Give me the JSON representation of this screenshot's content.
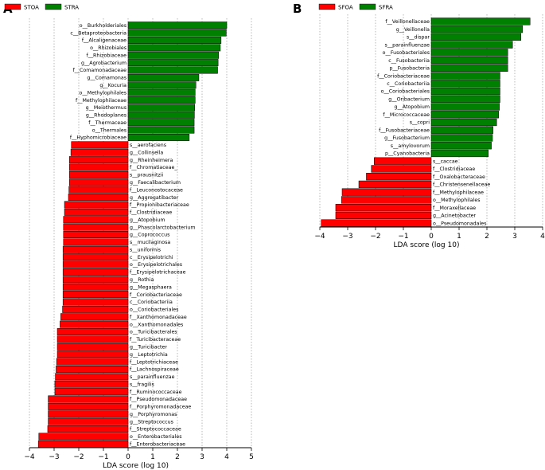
{
  "figure": {
    "panel_a_letter": "A",
    "panel_b_letter": "B"
  },
  "chart_data": [
    {
      "type": "bar",
      "orientation": "horizontal",
      "panel": "A",
      "xlabel": "LDA score (log 10)",
      "xlim": [
        -4,
        5
      ],
      "xticks": [
        -4,
        -3,
        -2,
        -1,
        0,
        1,
        2,
        3,
        4,
        5
      ],
      "grid": true,
      "legend": [
        {
          "name": "STOA",
          "color": "#ff0000"
        },
        {
          "name": "STRA",
          "color": "#008000"
        }
      ],
      "colors": {
        "positive": "#008000",
        "negative": "#ff0000"
      },
      "categories": [
        "o__Burkholderiales",
        "c__Betaproteobacteria",
        "f__Alcaligenaceae",
        "o__Rhizobiales",
        "f__Rhizobiaceae",
        "g__Agrobacterium",
        "f__Comamonadaceae",
        "g__Comamonas",
        "g__Kocuria",
        "o__Methylophilales",
        "f__Methylophilaceae",
        "g__Meiothermus",
        "g__Rhodoplanes",
        "f__Thermaceae",
        "o__Thermales",
        "f__Hyphomicrobiaceae",
        "s__aerofaciens",
        "g__Collinsella",
        "g__Rheinheimera",
        "f__Chromatiaceae_",
        "s__prausnitzii",
        "g__Faecalibacterium",
        "f__Leuconostocaceae",
        "g__Aggregatibacter",
        "f__Propionibacteriaceae",
        "f__Clostridiaceae",
        "g__Atopobium",
        "g__Phascolarctobacterium",
        "g__Coprococcus",
        "s__mucilaginosa",
        "s__uniformis",
        "c__Erysipelotrichi",
        "o__Erysipelotrichales",
        "f__Erysipelotrichaceae",
        "g__Rothia",
        "g__Megasphaera",
        "f__Coriobacteriaceae",
        "c__Coriobacteriia",
        "o__Coriobacteriales",
        "f__Xanthomonadaceae",
        "o__Xanthomonadales",
        "o__Turicibacterales",
        "f__Turicibacteraceae",
        "g__Turicibacter",
        "g__Leptotrichia",
        "f__Leptotrichiaceae",
        "f__Lachnospiraceae",
        "s__parainfluenzae",
        "s__fragilis",
        "f__Ruminococcaceae",
        "f__Pseudomonadaceae",
        "f__Porphyromonadaceae",
        "g__Porphyromonas",
        "g__Streptococcus",
        "f__Streptococcaceae",
        "o__Enterobacteriales",
        "f__Enterobacteriaceae"
      ],
      "values": [
        4.0,
        3.98,
        3.77,
        3.74,
        3.67,
        3.65,
        3.63,
        2.87,
        2.75,
        2.72,
        2.72,
        2.7,
        2.69,
        2.68,
        2.68,
        2.48,
        -2.3,
        -2.32,
        -2.38,
        -2.38,
        -2.38,
        -2.38,
        -2.4,
        -2.42,
        -2.58,
        -2.58,
        -2.62,
        -2.62,
        -2.62,
        -2.62,
        -2.64,
        -2.64,
        -2.64,
        -2.64,
        -2.64,
        -2.64,
        -2.64,
        -2.64,
        -2.66,
        -2.73,
        -2.76,
        -2.87,
        -2.87,
        -2.87,
        -2.87,
        -2.9,
        -2.92,
        -2.95,
        -2.97,
        -2.97,
        -3.24,
        -3.24,
        -3.24,
        -3.24,
        -3.26,
        -3.62,
        -3.64
      ]
    },
    {
      "type": "bar",
      "orientation": "horizontal",
      "panel": "B",
      "xlabel": "LDA score (log 10)",
      "xlim": [
        -4,
        4
      ],
      "xticks": [
        -4,
        -3,
        -2,
        -1,
        0,
        1,
        2,
        3,
        4
      ],
      "grid": true,
      "legend": [
        {
          "name": "SFOA",
          "color": "#ff0000"
        },
        {
          "name": "SFRA",
          "color": "#008000"
        }
      ],
      "colors": {
        "positive": "#008000",
        "negative": "#ff0000"
      },
      "categories": [
        "f__Veillonellaceae",
        "g__Veillonella",
        "s__dispar",
        "s__parainfluenzae",
        "o__Fusobacteriales",
        "c__Fusobacteriia",
        "p__Fusobacteria",
        "f__Coriobacteriaceae",
        "c__Coriobacteriia",
        "o__Coriobacteriales",
        "g__Oribacterium",
        "g__Atopobium",
        "f__Micrococcaceae",
        "s__copri",
        "f__Fusobacteriaceae",
        "g__Fusobacterium",
        "s__amylovorum",
        "p__Cyanobacteria",
        "s__caccae",
        "f__Clostridiaceae",
        "f__Oxalobacteraceae",
        "f__Christensenellaceae",
        "f__Methylophilaceae",
        "o__Methylophilales",
        "f__Moraxellaceae",
        "g__Acinetobacter",
        "o__Pseudomonadales"
      ],
      "values": [
        3.55,
        3.28,
        3.22,
        2.92,
        2.75,
        2.75,
        2.75,
        2.47,
        2.47,
        2.47,
        2.47,
        2.45,
        2.42,
        2.35,
        2.22,
        2.2,
        2.16,
        2.05,
        -2.05,
        -2.15,
        -2.33,
        -2.6,
        -3.2,
        -3.22,
        -3.43,
        -3.43,
        -3.95
      ]
    }
  ]
}
